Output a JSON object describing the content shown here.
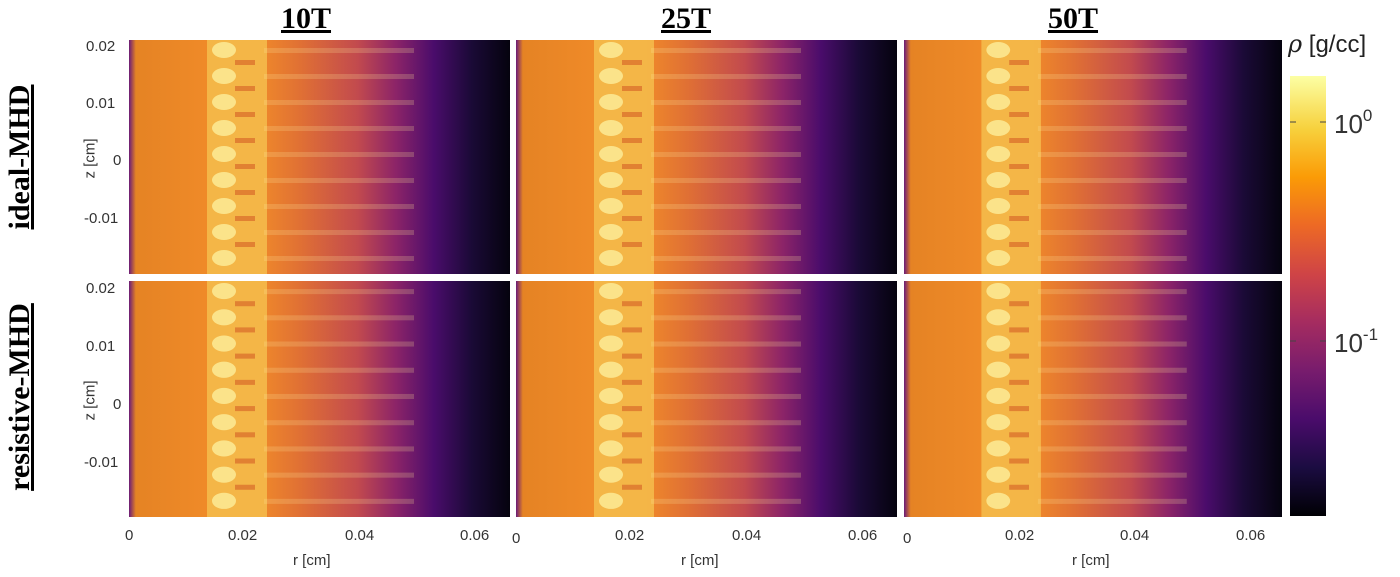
{
  "columns": [
    "10T",
    "25T",
    "50T"
  ],
  "rows": [
    "ideal-MHD",
    "resistive-MHD"
  ],
  "axes": {
    "z_label": "z [cm]",
    "r_label": "r [cm]",
    "z_ticks": [
      "0.02",
      "0.01",
      "0",
      "-0.01"
    ],
    "r_ticks": [
      "0",
      "0.02",
      "0.04",
      "0.06"
    ]
  },
  "colorbar": {
    "symbol": "ρ",
    "unit": "[g/cc]",
    "label_base": "10",
    "labels": [
      {
        "exp": "0"
      },
      {
        "exp": "-1"
      }
    ],
    "scale": "log",
    "colormap": "inferno",
    "colors": [
      "#000004",
      "#1b0c41",
      "#4a0c6b",
      "#781c6d",
      "#a52c60",
      "#cf4446",
      "#ed6925",
      "#fb9b06",
      "#f7d13d",
      "#fcffa4"
    ]
  }
}
